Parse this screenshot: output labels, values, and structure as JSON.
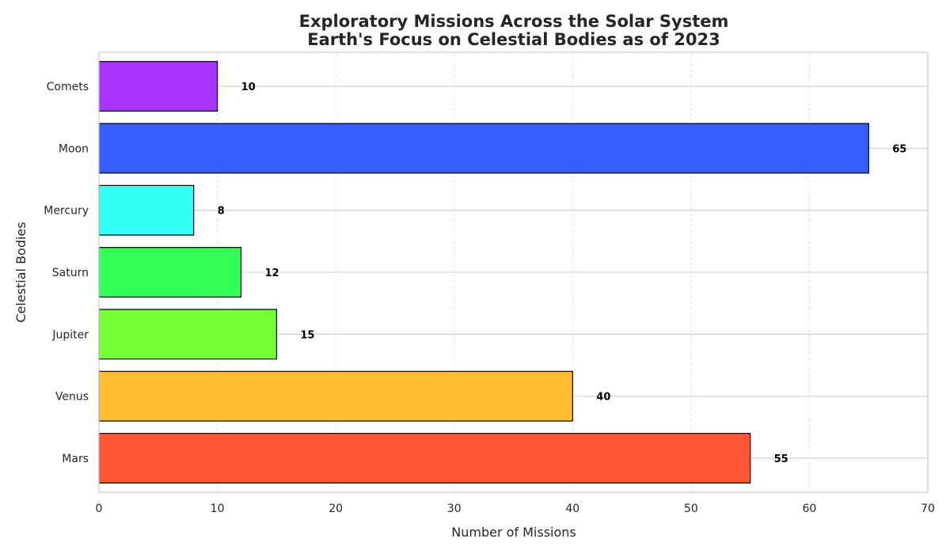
{
  "chart_data": {
    "type": "bar",
    "orientation": "horizontal",
    "title": "Exploratory Missions Across the Solar System",
    "subtitle": "Earth's Focus on Celestial Bodies as of 2023",
    "xlabel": "Number of Missions",
    "ylabel": "Celestial Bodies",
    "xlim": [
      0,
      70
    ],
    "x_ticks": [
      0,
      10,
      20,
      30,
      40,
      50,
      60,
      70
    ],
    "categories": [
      "Mars",
      "Venus",
      "Jupiter",
      "Saturn",
      "Mercury",
      "Moon",
      "Comets"
    ],
    "values": [
      55,
      40,
      15,
      12,
      8,
      65,
      10
    ],
    "colors": [
      "#ff5733",
      "#ffbd33",
      "#75ff33",
      "#33ff57",
      "#33fff5",
      "#335bff",
      "#a833ff"
    ],
    "data_labels": [
      "55",
      "40",
      "15",
      "12",
      "8",
      "65",
      "10"
    ],
    "grid": true,
    "legend": "none"
  }
}
